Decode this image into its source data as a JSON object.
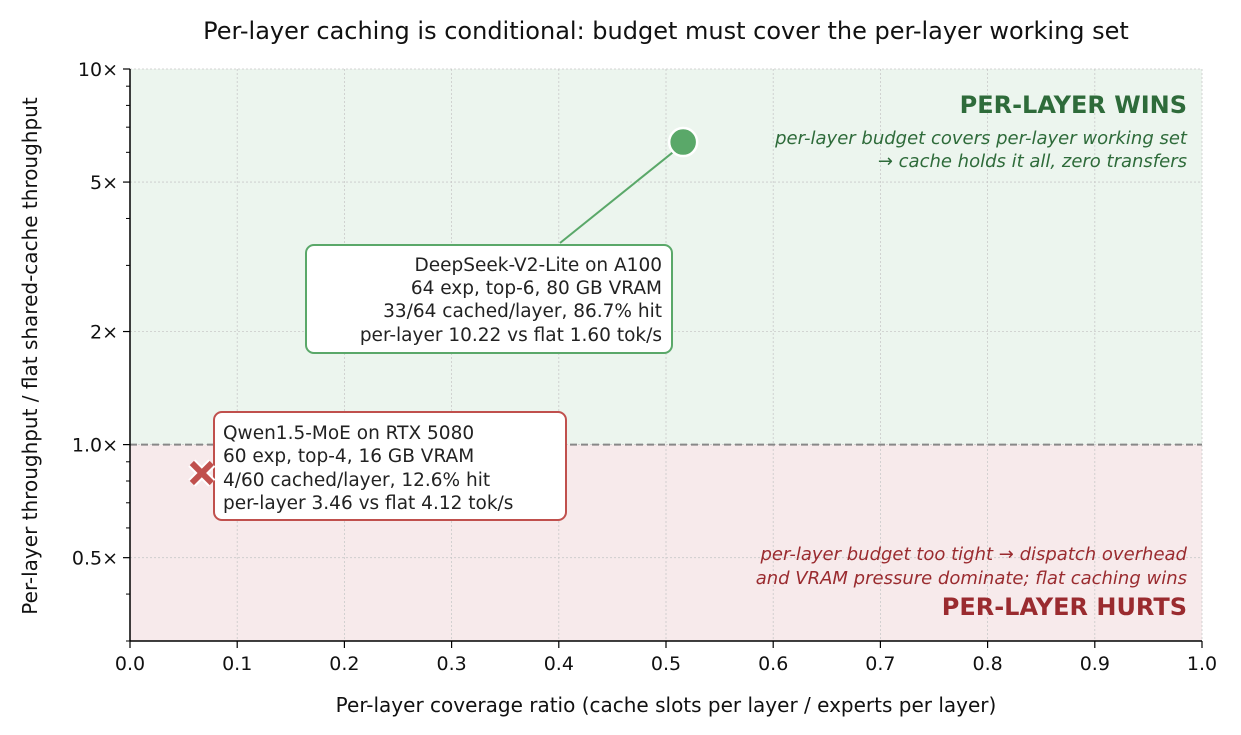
{
  "chart_data": {
    "type": "scatter",
    "title": "Per-layer caching is conditional: budget must cover the per-layer working set",
    "xlabel": "Per-layer coverage ratio  (cache slots per layer  /  experts per layer)",
    "ylabel": "Per-layer throughput  /  flat shared-cache throughput",
    "xlim": [
      0.0,
      1.0
    ],
    "ylim": [
      0.3,
      10.0
    ],
    "yscale": "log",
    "grid": true,
    "x_ticks": [
      "0.0",
      "0.1",
      "0.2",
      "0.3",
      "0.4",
      "0.5",
      "0.6",
      "0.7",
      "0.8",
      "0.9",
      "1.0"
    ],
    "y_ticks": [
      {
        "value": 0.5,
        "label": "0.5×"
      },
      {
        "value": 1.0,
        "label": "1.0×"
      },
      {
        "value": 2.0,
        "label": "2×"
      },
      {
        "value": 5.0,
        "label": "5×"
      },
      {
        "value": 10.0,
        "label": "10×"
      }
    ],
    "reference_line": {
      "y": 1.0,
      "style": "dashed"
    },
    "regions": {
      "wins": {
        "heading": "PER-LAYER WINS",
        "note_lines": [
          "per-layer budget covers per-layer working set",
          "→ cache holds it all, zero transfers"
        ],
        "color": "#2e6b3a",
        "fill": "#ecf5ee"
      },
      "hurts": {
        "heading": "PER-LAYER HURTS",
        "note_lines": [
          "per-layer budget too tight → dispatch overhead",
          "and VRAM pressure dominate; flat caching wins"
        ],
        "color": "#9a2b2f",
        "fill": "#f7eaeb"
      }
    },
    "points": [
      {
        "x": 0.516,
        "y": 6.39,
        "marker": "circle",
        "color": "#5aa869",
        "annotation_lines": [
          "DeepSeek-V2-Lite on A100",
          "64 exp, top-6, 80 GB VRAM",
          "33/64 cached/layer, 86.7% hit",
          "per-layer 10.22 vs flat 1.60 tok/s"
        ]
      },
      {
        "x": 0.067,
        "y": 0.84,
        "marker": "x",
        "color": "#c0504d",
        "annotation_lines": [
          "Qwen1.5-MoE on RTX 5080",
          "60 exp, top-4, 16 GB VRAM",
          "4/60 cached/layer, 12.6% hit",
          "per-layer 3.46 vs flat 4.12 tok/s"
        ]
      }
    ]
  }
}
